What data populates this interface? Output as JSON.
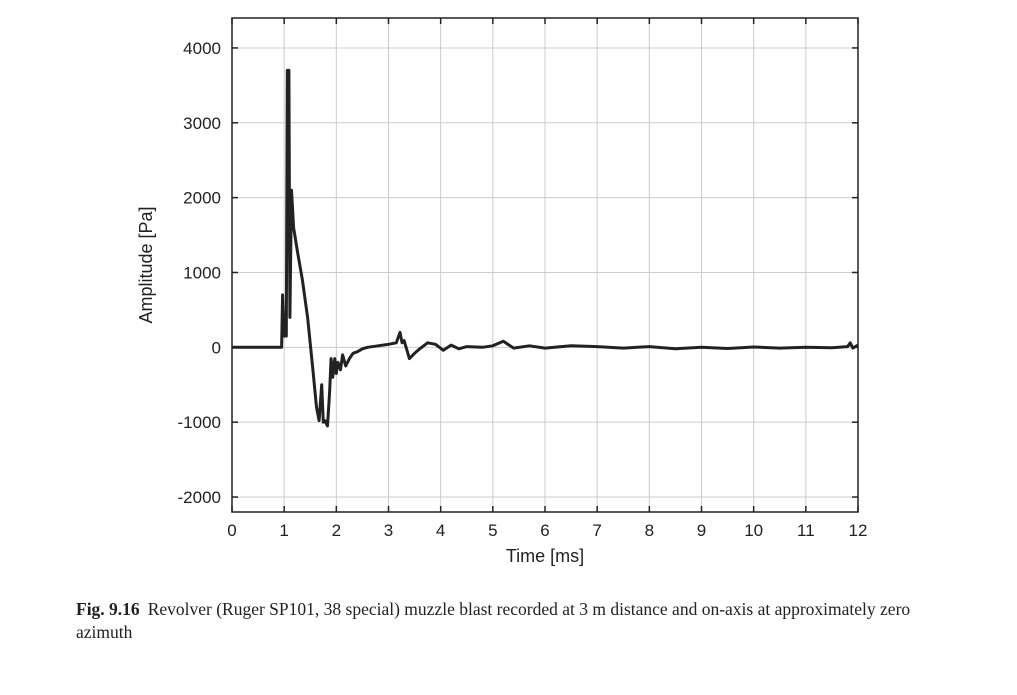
{
  "chart_data": {
    "type": "line",
    "title": "",
    "xlabel": "Time [ms]",
    "ylabel": "Amplitude [Pa]",
    "xlim": [
      0,
      12
    ],
    "ylim": [
      -2200,
      4400
    ],
    "xticks": [
      0,
      1,
      2,
      3,
      4,
      5,
      6,
      7,
      8,
      9,
      10,
      11,
      12
    ],
    "yticks": [
      -2000,
      -1000,
      0,
      1000,
      2000,
      3000,
      4000
    ],
    "grid": true,
    "series": [
      {
        "name": "muzzle blast",
        "color": "#222222",
        "x": [
          0,
          0.95,
          0.97,
          1.0,
          1.02,
          1.04,
          1.06,
          1.09,
          1.11,
          1.14,
          1.18,
          1.25,
          1.35,
          1.45,
          1.55,
          1.62,
          1.67,
          1.72,
          1.75,
          1.78,
          1.83,
          1.87,
          1.9,
          1.93,
          1.97,
          2.0,
          2.03,
          2.08,
          2.12,
          2.18,
          2.25,
          2.32,
          2.4,
          2.5,
          2.6,
          2.8,
          3.0,
          3.15,
          3.22,
          3.26,
          3.3,
          3.4,
          3.5,
          3.6,
          3.75,
          3.9,
          4.05,
          4.2,
          4.35,
          4.5,
          4.8,
          5.0,
          5.2,
          5.4,
          5.7,
          6.0,
          6.5,
          7.0,
          7.5,
          8.0,
          8.5,
          9.0,
          9.5,
          10.0,
          10.5,
          11.0,
          11.5,
          11.8,
          11.85,
          11.9,
          12.0
        ],
        "y": [
          0,
          0,
          700,
          150,
          350,
          150,
          3700,
          3700,
          400,
          2100,
          1600,
          1300,
          900,
          400,
          -300,
          -800,
          -980,
          -500,
          -1000,
          -980,
          -1050,
          -600,
          -150,
          -400,
          -150,
          -350,
          -200,
          -300,
          -100,
          -250,
          -150,
          -80,
          -60,
          -20,
          0,
          20,
          40,
          60,
          200,
          60,
          90,
          -150,
          -80,
          -20,
          60,
          40,
          -40,
          30,
          -20,
          10,
          0,
          20,
          80,
          -10,
          20,
          -10,
          20,
          10,
          -10,
          10,
          -20,
          0,
          -15,
          5,
          -10,
          0,
          -5,
          10,
          60,
          -10,
          30
        ]
      }
    ]
  },
  "caption": {
    "label": "Fig. 9.16",
    "text": "Revolver (Ruger SP101, 38 special) muzzle blast recorded at 3 m distance and on-axis at approximately zero azimuth"
  }
}
